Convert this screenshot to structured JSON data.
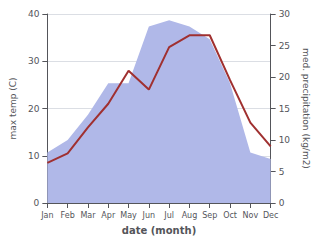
{
  "chart_data": {
    "type": "line",
    "xlabel": "date (month)",
    "ylabel": "max temp (C)",
    "y2label": "med. precipitation (kg/m2)",
    "categories": [
      "Jan",
      "Feb",
      "Mar",
      "Apr",
      "May",
      "Jun",
      "Jul",
      "Aug",
      "Sep",
      "Oct",
      "Nov",
      "Dec"
    ],
    "series": [
      {
        "type": "area",
        "axis": "y2",
        "color": "#b0b8e8",
        "values": [
          8,
          10,
          14,
          19,
          19,
          28,
          29,
          28,
          26,
          19,
          8,
          7
        ]
      },
      {
        "type": "line",
        "color": "#a03030",
        "values": [
          8.5,
          10.5,
          16,
          21,
          28,
          24,
          33,
          35.5,
          35.5,
          26,
          17,
          12
        ]
      }
    ],
    "ylim": [
      0,
      40
    ],
    "yticks": [
      0,
      10,
      20,
      30,
      40
    ],
    "y2lim": [
      0,
      30
    ],
    "y2ticks": [
      0,
      5,
      10,
      15,
      20,
      25,
      30
    ],
    "grid": true
  }
}
